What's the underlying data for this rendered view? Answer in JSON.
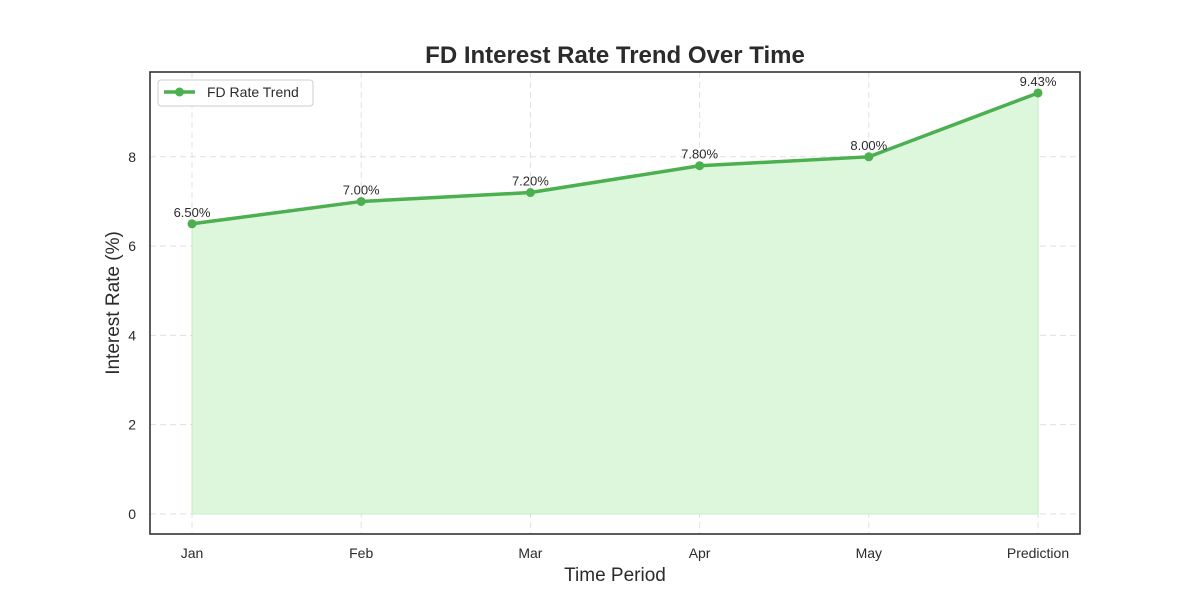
{
  "chart_data": {
    "type": "area",
    "title": "FD Interest Rate Trend Over Time",
    "xlabel": "Time Period",
    "ylabel": "Interest Rate (%)",
    "categories": [
      "Jan",
      "Feb",
      "Mar",
      "Apr",
      "May",
      "Prediction"
    ],
    "series": [
      {
        "name": "FD Rate Trend",
        "values": [
          6.5,
          7.0,
          7.2,
          7.8,
          8.0,
          9.43
        ],
        "data_labels": [
          "6.50%",
          "7.00%",
          "7.20%",
          "7.80%",
          "8.00%",
          "9.43%"
        ]
      }
    ],
    "ylim": [
      -0.45,
      9.9
    ],
    "yticks": [
      0,
      2,
      4,
      6,
      8
    ],
    "ytick_labels": [
      "0",
      "2",
      "4",
      "6",
      "8"
    ],
    "grid": true,
    "legend_position": "top-left",
    "colors": {
      "line": "#4caf50",
      "fill": "#dcf7dc",
      "grid": "#e0e0e0",
      "frame": "#333333"
    }
  }
}
